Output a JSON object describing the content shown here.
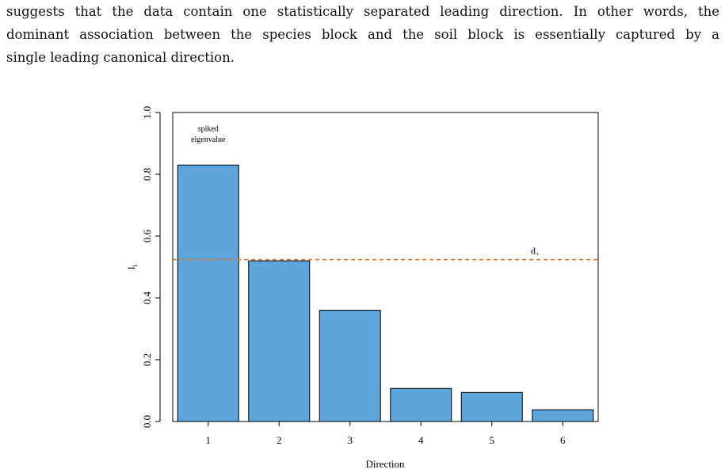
{
  "paragraph": {
    "lines": [
      "suggests that the data contain one statistically separated leading direction. In other words, the",
      "dominant association between the species block and the soil block is essentially captured by a",
      "single leading canonical direction."
    ]
  },
  "chart_data": {
    "type": "bar",
    "categories": [
      "1",
      "2",
      "3",
      "4",
      "5",
      "6"
    ],
    "values": [
      0.83,
      0.52,
      0.36,
      0.107,
      0.094,
      0.038
    ],
    "xlabel": "Direction",
    "ylabel": "l",
    "ylabel_subscript": "i",
    "ylim": [
      0,
      1
    ],
    "yticks": [
      "0.0",
      "0.2",
      "0.4",
      "0.6",
      "0.8",
      "1.0"
    ],
    "bar_color": "#5ea5db",
    "threshold": {
      "value": 0.524,
      "label": "d",
      "label_subscript": "+",
      "color": "#d9772b",
      "style": "dashed"
    },
    "annotation": {
      "lines": [
        "spiked",
        "eigenvalue"
      ],
      "category": "1"
    },
    "grid": false
  }
}
